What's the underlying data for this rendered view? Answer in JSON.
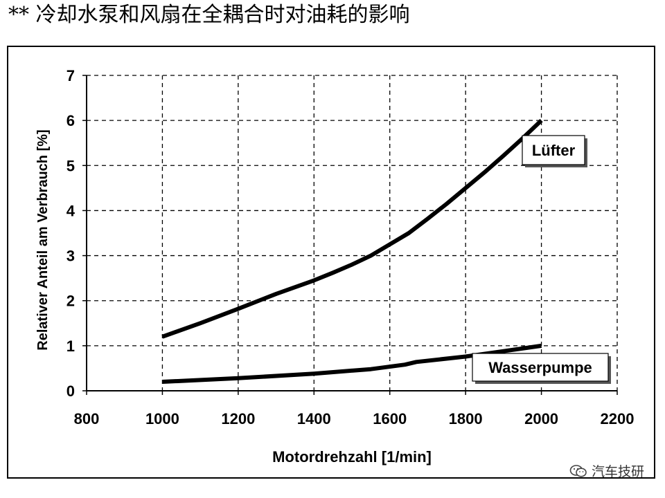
{
  "header": {
    "title": "** 冷却水泵和风扇在全耦合时对油耗的影响"
  },
  "watermark": {
    "text": "汽车技研",
    "icon": "wechat-icon"
  },
  "chart_data": {
    "type": "line",
    "xlabel": "Motordrehzahl [1/min]",
    "ylabel": "Relativer Anteil am Verbrauch [%]",
    "xlim": [
      800,
      2200
    ],
    "ylim": [
      0,
      7
    ],
    "xticks": [
      800,
      1000,
      1200,
      1400,
      1600,
      1800,
      2000,
      2200
    ],
    "yticks": [
      0,
      1,
      2,
      3,
      4,
      5,
      6,
      7
    ],
    "grid": true,
    "grid_style": "dashed",
    "line_color": "#000000",
    "series": [
      {
        "name": "Lüfter",
        "x": [
          1000,
          1100,
          1200,
          1300,
          1400,
          1450,
          1500,
          1550,
          1600,
          1650,
          1700,
          1750,
          1800,
          1850,
          1900,
          1950,
          2000
        ],
        "y": [
          1.2,
          1.5,
          1.82,
          2.15,
          2.45,
          2.62,
          2.8,
          3.0,
          3.25,
          3.5,
          3.82,
          4.15,
          4.5,
          4.85,
          5.22,
          5.6,
          6.0
        ]
      },
      {
        "name": "Wasserpumpe",
        "x": [
          1000,
          1200,
          1400,
          1550,
          1640,
          1670,
          1800,
          1900,
          2000
        ],
        "y": [
          0.2,
          0.28,
          0.38,
          0.48,
          0.58,
          0.64,
          0.76,
          0.88,
          1.0
        ]
      }
    ]
  }
}
